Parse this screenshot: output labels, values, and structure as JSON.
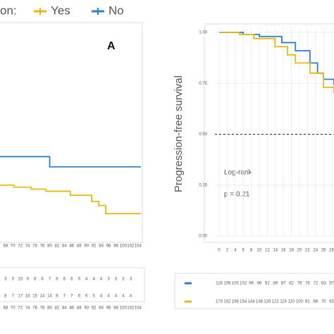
{
  "chart_data": [
    {
      "type": "line",
      "legend_title": "on:",
      "panel_label": "A",
      "xlim": [
        66.5,
        104.8
      ],
      "ylim": [
        0,
        1
      ],
      "xticks": [
        68,
        70,
        72,
        74,
        76,
        78,
        80,
        82,
        84,
        86,
        88,
        90,
        92,
        94,
        96,
        98,
        100,
        102,
        104
      ],
      "series": [
        {
          "name": "Yes",
          "color": "#e8b90e",
          "x": [
            66.5,
            70.3,
            75,
            79,
            85.6,
            91.4,
            93.3,
            95.2,
            104.8
          ],
          "values": [
            0.25,
            0.24,
            0.23,
            0.22,
            0.2,
            0.17,
            0.15,
            0.11,
            0.11
          ],
          "risk": [
            8,
            7,
            17,
            16,
            15,
            14,
            14,
            8,
            7,
            7,
            6,
            6,
            5,
            4,
            4,
            4,
            4,
            4
          ]
        },
        {
          "name": "No",
          "color": "#2f7fc1",
          "x": [
            66.5,
            80,
            104.8
          ],
          "values": [
            0.39,
            0.34,
            0.34
          ],
          "risk": [
            3,
            3,
            10,
            9,
            8,
            8,
            7,
            6,
            6,
            6,
            5,
            4,
            4,
            4,
            3,
            3,
            3,
            3
          ]
        }
      ]
    },
    {
      "type": "line",
      "ylabel": "Progression-free survival",
      "annotations": [
        "Log-rank",
        "p = 0.21"
      ],
      "hline": 0.5,
      "grid": true,
      "xlim": [
        -1.05,
        28.6
      ],
      "ylim": [
        0,
        1
      ],
      "xticks": [
        0,
        2,
        4,
        6,
        8,
        10,
        12,
        14,
        16,
        18,
        20,
        22,
        24,
        26,
        28
      ],
      "yticks": [
        {
          "value": 0,
          "label": "0.00"
        },
        {
          "value": 0.25,
          "label": "0.25"
        },
        {
          "value": 0.5,
          "label": "0.50"
        },
        {
          "value": 0.75,
          "label": "0.75"
        },
        {
          "value": 1,
          "label": "1.00"
        }
      ],
      "series": [
        {
          "color": "#2f7fc1",
          "x": [
            0,
            6,
            10,
            15.6,
            19,
            22.6,
            24.5,
            26,
            28.6
          ],
          "values": [
            1,
            0.99,
            0.98,
            0.95,
            0.91,
            0.85,
            0.8,
            0.77,
            0.74
          ],
          "risk": [
            118,
            109,
            105,
            102,
            96,
            96,
            92,
            89,
            87,
            82,
            79,
            78,
            72,
            63,
            57
          ]
        },
        {
          "color": "#e8b90e",
          "x": [
            0,
            5,
            8.6,
            13.9,
            17,
            19,
            22.6,
            26,
            28.6
          ],
          "values": [
            1,
            0.99,
            0.97,
            0.93,
            0.89,
            0.85,
            0.8,
            0.73,
            0.7
          ],
          "risk": [
            173,
            152,
            156,
            154,
            144,
            138,
            133,
            122,
            116,
            110,
            100,
            91,
            88,
            70,
            63
          ]
        }
      ]
    }
  ]
}
